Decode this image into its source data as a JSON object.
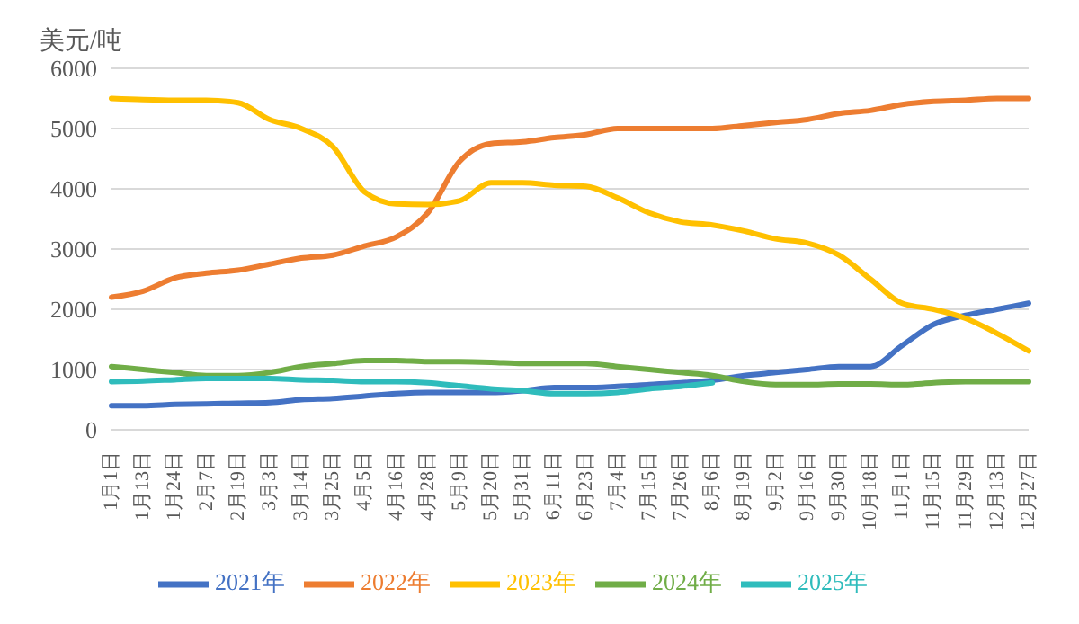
{
  "chart_data": {
    "type": "line",
    "ylabel": "美元/吨",
    "categories": [
      "1月1日",
      "1月13日",
      "1月24日",
      "2月7日",
      "2月19日",
      "3月3日",
      "3月14日",
      "3月25日",
      "4月5日",
      "4月16日",
      "4月28日",
      "5月9日",
      "5月20日",
      "5月31日",
      "6月11日",
      "6月23日",
      "7月4日",
      "7月15日",
      "7月26日",
      "8月6日",
      "8月19日",
      "9月2日",
      "9月16日",
      "9月30日",
      "10月18日",
      "11月1日",
      "11月15日",
      "11月29日",
      "12月13日",
      "12月27日"
    ],
    "series": [
      {
        "name": "2021年",
        "color": "#4472c4",
        "values": [
          400,
          400,
          420,
          430,
          440,
          450,
          500,
          520,
          560,
          600,
          620,
          620,
          620,
          650,
          700,
          700,
          720,
          750,
          780,
          820,
          900,
          950,
          1000,
          1050,
          1050,
          1400,
          1750,
          1900,
          2000,
          2100
        ]
      },
      {
        "name": "2022年",
        "color": "#ed7d31",
        "values": [
          2200,
          2300,
          2520,
          2600,
          2650,
          2750,
          2850,
          2900,
          3050,
          3200,
          3600,
          4450,
          4750,
          4780,
          4850,
          4900,
          5000,
          5000,
          5000,
          5000,
          5050,
          5100,
          5150,
          5250,
          5300,
          5400,
          5450,
          5470,
          5500,
          5500
        ]
      },
      {
        "name": "2023年",
        "color": "#ffc000",
        "values": [
          5500,
          5480,
          5470,
          5470,
          5430,
          5150,
          5000,
          4700,
          3950,
          3750,
          3740,
          3800,
          4100,
          4100,
          4060,
          4040,
          3850,
          3600,
          3450,
          3400,
          3300,
          3170,
          3100,
          2900,
          2500,
          2100,
          2000,
          1850,
          1600,
          1310
        ]
      },
      {
        "name": "2024年",
        "color": "#70ad47",
        "values": [
          1050,
          1000,
          950,
          900,
          900,
          950,
          1050,
          1100,
          1150,
          1150,
          1130,
          1130,
          1120,
          1100,
          1100,
          1100,
          1050,
          1000,
          950,
          900,
          800,
          750,
          750,
          760,
          760,
          750,
          780,
          800,
          800,
          800
        ]
      },
      {
        "name": "2025年",
        "color": "#2fbcbc",
        "values": [
          800,
          810,
          830,
          850,
          850,
          850,
          830,
          820,
          800,
          800,
          780,
          730,
          680,
          650,
          600,
          600,
          620,
          680,
          720,
          780,
          null,
          null,
          null,
          null,
          null,
          null,
          null,
          null,
          null,
          null
        ]
      }
    ],
    "ylim": [
      0,
      6000
    ],
    "yticks": [
      0,
      1000,
      2000,
      3000,
      4000,
      5000,
      6000
    ],
    "grid": "y",
    "legend": "bottom",
    "marker": "none",
    "line_style": "solid"
  }
}
